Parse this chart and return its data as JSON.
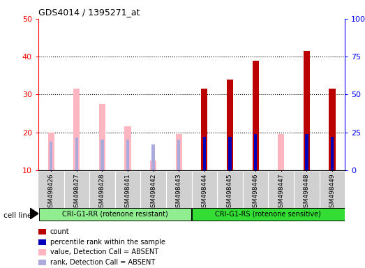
{
  "title": "GDS4014 / 1395271_at",
  "samples": [
    "GSM498426",
    "GSM498427",
    "GSM498428",
    "GSM498441",
    "GSM498442",
    "GSM498443",
    "GSM498444",
    "GSM498445",
    "GSM498446",
    "GSM498447",
    "GSM498448",
    "GSM498449"
  ],
  "count_values": [
    null,
    null,
    null,
    null,
    null,
    null,
    31.5,
    34.0,
    39.0,
    null,
    41.5,
    31.5
  ],
  "rank_values": [
    null,
    null,
    null,
    null,
    null,
    null,
    22.0,
    22.0,
    24.0,
    null,
    24.0,
    22.0
  ],
  "absent_value": [
    20.0,
    31.5,
    27.5,
    21.5,
    12.5,
    19.5,
    null,
    null,
    null,
    19.5,
    null,
    null
  ],
  "absent_rank": [
    19.0,
    21.5,
    20.0,
    20.0,
    17.0,
    20.0,
    null,
    null,
    null,
    null,
    null,
    null
  ],
  "groups": [
    0,
    0,
    0,
    0,
    0,
    0,
    1,
    1,
    1,
    1,
    1,
    1
  ],
  "group_labels": [
    "CRI-G1-RR (rotenone resistant)",
    "CRI-G1-RS (rotenone sensitive)"
  ],
  "group_colors": [
    "#90EE90",
    "#33DD33"
  ],
  "ylim_left": [
    10,
    50
  ],
  "ylim_right": [
    0,
    100
  ],
  "yticks_left": [
    10,
    20,
    30,
    40,
    50
  ],
  "yticks_right": [
    0,
    25,
    50,
    75,
    100
  ],
  "count_color": "#BB0000",
  "rank_color": "#0000BB",
  "absent_val_color": "#FFB6C1",
  "absent_rank_color": "#AAAADD",
  "bg_color": "#FFFFFF",
  "ticklabel_bg": "#D0D0D0",
  "legend_items": [
    {
      "label": "count",
      "color": "#BB0000"
    },
    {
      "label": "percentile rank within the sample",
      "color": "#0000BB"
    },
    {
      "label": "value, Detection Call = ABSENT",
      "color": "#FFB6C1"
    },
    {
      "label": "rank, Detection Call = ABSENT",
      "color": "#AAAADD"
    }
  ],
  "cell_line_label": "cell line"
}
